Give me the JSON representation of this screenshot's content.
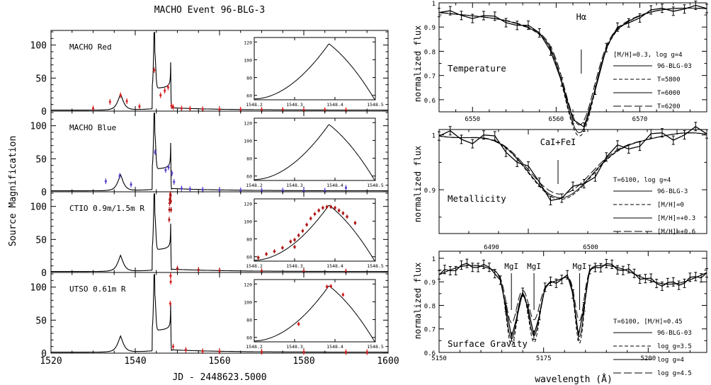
{
  "chart_data": [
    {
      "type": "line",
      "title": "MACHO Event 96-BLG-3",
      "xlabel": "JD - 2448623.5000",
      "ylabel": "Source Magnification",
      "xlim": [
        1520,
        1600
      ],
      "ylim": [
        0,
        120
      ],
      "x_ticks": [
        "1520",
        "1540",
        "1560",
        "1580",
        "1600"
      ],
      "y_ticks": [
        "0",
        "50",
        "100"
      ],
      "inset": {
        "xlim": [
          1548.2,
          1548.5
        ],
        "ylim": [
          55,
          125
        ],
        "x_ticks": [
          "1548.2",
          "1548.3",
          "1548.4",
          "1548.5"
        ],
        "y_ticks": [
          "60",
          "80",
          "100",
          "120"
        ]
      },
      "panels": [
        {
          "label": "MACHO Red",
          "color": "#d42020",
          "points": [
            [
              1530,
              4
            ],
            [
              1534,
              14
            ],
            [
              1536.5,
              24
            ],
            [
              1538,
              15
            ],
            [
              1541,
              7
            ],
            [
              1544.5,
              62
            ],
            [
              1546,
              24
            ],
            [
              1547,
              31
            ],
            [
              1547.8,
              36
            ],
            [
              1548.6,
              8
            ],
            [
              1549,
              6
            ],
            [
              1551,
              4
            ],
            [
              1553,
              3.6
            ],
            [
              1556,
              3
            ],
            [
              1560,
              2.6
            ],
            [
              1565,
              2.3
            ],
            [
              1570,
              2
            ],
            [
              1575,
              1.9
            ],
            [
              1580,
              1.7
            ],
            [
              1585,
              1.6
            ],
            [
              1590,
              1.5
            ]
          ],
          "inset_points": []
        },
        {
          "label": "MACHO Blue",
          "color": "#5a3cc8",
          "points": [
            [
              1533,
              16
            ],
            [
              1536.3,
              24
            ],
            [
              1539,
              11
            ],
            [
              1544.7,
              60
            ],
            [
              1547.2,
              33
            ],
            [
              1547.9,
              37
            ],
            [
              1548.7,
              28
            ],
            [
              1549.2,
              15
            ],
            [
              1551,
              5
            ],
            [
              1553,
              4
            ],
            [
              1556,
              3.2
            ],
            [
              1560,
              2.7
            ],
            [
              1565,
              2.3
            ],
            [
              1570,
              2.1
            ],
            [
              1575,
              1.9
            ],
            [
              1580,
              1.7
            ],
            [
              1585,
              1.6
            ],
            [
              1590,
              6
            ]
          ],
          "inset_points": []
        },
        {
          "label": "CTIO 0.9m/1.5m R",
          "color": "#b01818",
          "points": [
            [
              1548.05,
              80
            ],
            [
              1548.1,
              95
            ],
            [
              1548.15,
              105
            ],
            [
              1548.2,
              110
            ],
            [
              1548.25,
              112
            ],
            [
              1548.3,
              117
            ],
            [
              1548.35,
              119
            ],
            [
              1548.4,
              116
            ],
            [
              1548.45,
              108
            ],
            [
              1548.5,
              95
            ],
            [
              1550,
              6
            ],
            [
              1555,
              4
            ],
            [
              1560,
              3
            ],
            [
              1570,
              2.2
            ],
            [
              1580,
              1.8
            ],
            [
              1590,
              1.5
            ]
          ],
          "inset_points": [
            [
              1548.21,
              59
            ],
            [
              1548.23,
              63
            ],
            [
              1548.25,
              66
            ],
            [
              1548.27,
              70
            ],
            [
              1548.29,
              77
            ],
            [
              1548.3,
              79
            ],
            [
              1548.31,
              84
            ],
            [
              1548.32,
              89
            ],
            [
              1548.33,
              96
            ],
            [
              1548.34,
              103
            ],
            [
              1548.35,
              108
            ],
            [
              1548.36,
              112
            ],
            [
              1548.37,
              115
            ],
            [
              1548.38,
              116
            ],
            [
              1548.39,
              116
            ],
            [
              1548.4,
              115
            ],
            [
              1548.41,
              112
            ],
            [
              1548.42,
              109
            ],
            [
              1548.43,
              105
            ],
            [
              1548.45,
              98
            ],
            [
              1548.3,
              71
            ]
          ]
        },
        {
          "label": "UTSO 0.61m R",
          "color": "#d42020",
          "points": [
            [
              1548.3,
              75
            ],
            [
              1548.38,
              117
            ],
            [
              1548.4,
              117
            ],
            [
              1548.42,
              108
            ],
            [
              1549,
              10
            ],
            [
              1552,
              5
            ],
            [
              1556,
              3
            ],
            [
              1560,
              2.6
            ],
            [
              1570,
              2.1
            ],
            [
              1580,
              1.8
            ],
            [
              1590,
              1.6
            ],
            [
              1595,
              1.5
            ]
          ],
          "inset_points": [
            [
              1548.31,
              75
            ],
            [
              1548.38,
              117
            ],
            [
              1548.39,
              117.5
            ],
            [
              1548.42,
              108
            ]
          ]
        }
      ]
    },
    {
      "type": "line",
      "xlabel": "wavelength (Å)",
      "ylabel": "normalized flux",
      "panels": [
        {
          "label": "Temperature",
          "line_label": "Hα",
          "line_x": 6563,
          "xlim": [
            6546,
            6578
          ],
          "ylim": [
            0.55,
            1.0
          ],
          "x_ticks": [
            "6550",
            "6560",
            "6570"
          ],
          "y_ticks": [
            "0.6",
            "0.7",
            "0.8",
            "0.9",
            "1"
          ],
          "legend_title": "[M/H]=0.3, log g=4",
          "series": [
            {
              "name": "96-BLG-03",
              "style": "errorbar"
            },
            {
              "name": "T=5800",
              "style": "dashed"
            },
            {
              "name": "T=6000",
              "style": "solid"
            },
            {
              "name": "T=6200",
              "style": "longdash"
            }
          ]
        },
        {
          "label": "Metallicity",
          "line_label": "CaI+FeI",
          "line_x": 6122,
          "xlim": [
            6114,
            6132
          ],
          "ylim": [
            0.82,
            1.01
          ],
          "x_ticks": [],
          "y_ticks": [
            "0.9",
            "1"
          ],
          "legend_title": "T=6100, log g=4",
          "series": [
            {
              "name": "96-BLG-3",
              "style": "errorbar"
            },
            {
              "name": "[M/H]=0",
              "style": "dashed"
            },
            {
              "name": "[M/H]=+0.3",
              "style": "solid"
            },
            {
              "name": "[M/H]=+0.6",
              "style": "longdash"
            }
          ]
        },
        {
          "label": "Surface Gravity",
          "line_labels": [
            "MgI",
            "MgI",
            "MgI"
          ],
          "line_xs": [
            5167.3,
            5172.7,
            5183.6
          ],
          "xlim": [
            5150,
            5214
          ],
          "ylim": [
            0.6,
            1.03
          ],
          "top_ticks": [
            "6490",
            "6500"
          ],
          "x_ticks": [
            "5150",
            "5175",
            "5200"
          ],
          "y_ticks": [
            "0.6",
            "0.7",
            "0.8",
            "0.9",
            "1"
          ],
          "legend_title": "T=6100, [M/H]=0.45",
          "series": [
            {
              "name": "96-BLG-03",
              "style": "errorbar"
            },
            {
              "name": "log g=3.5",
              "style": "dashed"
            },
            {
              "name": "log g=4",
              "style": "solid"
            },
            {
              "name": "log g=4.5",
              "style": "longdash"
            }
          ]
        }
      ]
    }
  ]
}
